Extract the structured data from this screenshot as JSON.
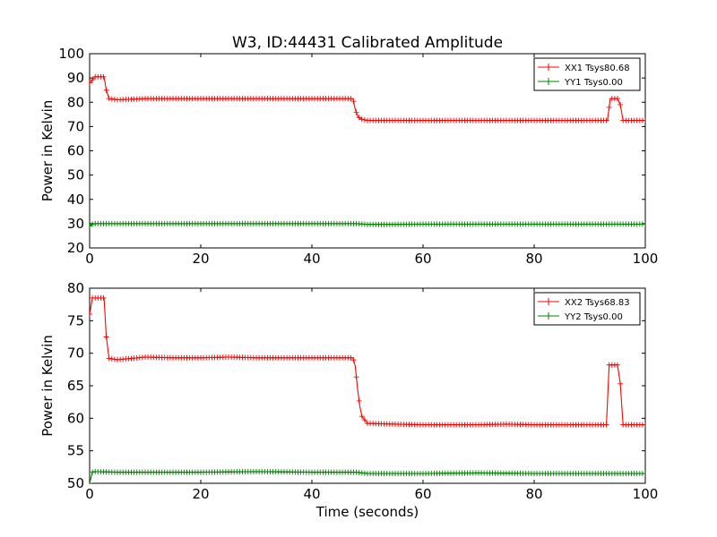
{
  "figure": {
    "title": "W3, ID:44431 Calibrated Amplitude",
    "xlabel": "Time (seconds)"
  },
  "chart_data": [
    {
      "type": "line",
      "title": "W3, ID:44431 Calibrated Amplitude",
      "xlabel": "",
      "ylabel": "Power in Kelvin",
      "xlim": [
        0,
        100
      ],
      "ylim": [
        20,
        100
      ],
      "xticks": [
        0,
        20,
        40,
        60,
        80,
        100
      ],
      "yticks": [
        20,
        30,
        40,
        50,
        60,
        70,
        80,
        90,
        100
      ],
      "legend": "top-right",
      "grid": false,
      "marker": "+",
      "series": [
        {
          "name": "XX1 Tsys80.68",
          "color": "#ff0000",
          "x": [
            0,
            1,
            2,
            2.6,
            3,
            3.5,
            5,
            10,
            15,
            20,
            25,
            30,
            35,
            40,
            45,
            47.4,
            47.8,
            48.3,
            49,
            50,
            55,
            60,
            65,
            70,
            75,
            80,
            85,
            90,
            93.2,
            93.7,
            95,
            95.5,
            96,
            98,
            100
          ],
          "y": [
            88,
            90.5,
            90.5,
            90.5,
            85,
            81.5,
            81,
            81.5,
            81.5,
            81.5,
            81.5,
            81.5,
            81.5,
            81.5,
            81.5,
            81.5,
            77,
            74,
            73,
            72.5,
            72.5,
            72.5,
            72.5,
            72.5,
            72.5,
            72.5,
            72.5,
            72.5,
            72.5,
            81.5,
            81.5,
            79,
            72.5,
            72.5,
            72.5
          ]
        },
        {
          "name": "YY1 Tsys0.00",
          "color": "#008000",
          "x": [
            0,
            0.5,
            1,
            5,
            10,
            20,
            30,
            40,
            48,
            50,
            55,
            60,
            70,
            80,
            90,
            100
          ],
          "y": [
            29,
            29.8,
            30,
            30,
            30,
            30,
            30,
            30,
            30,
            29.7,
            29.7,
            29.8,
            29.8,
            29.8,
            29.8,
            29.8
          ]
        }
      ]
    },
    {
      "type": "line",
      "title": "",
      "xlabel": "Time (seconds)",
      "ylabel": "Power in Kelvin",
      "xlim": [
        0,
        100
      ],
      "ylim": [
        50,
        80
      ],
      "xticks": [
        0,
        20,
        40,
        60,
        80,
        100
      ],
      "yticks": [
        50,
        55,
        60,
        65,
        70,
        75,
        80
      ],
      "legend": "top-right",
      "grid": false,
      "marker": "+",
      "series": [
        {
          "name": "XX2 Tsys68.83",
          "color": "#ff0000",
          "x": [
            0,
            0.5,
            1,
            2,
            2.6,
            3,
            3.5,
            5,
            10,
            15,
            20,
            25,
            30,
            35,
            40,
            45,
            47.4,
            47.8,
            48.2,
            48.6,
            49,
            50,
            55,
            60,
            65,
            70,
            75,
            80,
            85,
            90,
            93,
            93.5,
            95,
            95.5,
            96,
            98,
            100
          ],
          "y": [
            76,
            78.5,
            78.5,
            78.5,
            78.5,
            72.5,
            69.2,
            69,
            69.4,
            69.3,
            69.3,
            69.4,
            69.3,
            69.3,
            69.3,
            69.3,
            69.3,
            68,
            64.7,
            62,
            60.3,
            59.2,
            59.1,
            59,
            59,
            59,
            59.1,
            59,
            59,
            59,
            59,
            68.2,
            68.2,
            65.3,
            59,
            59,
            59
          ]
        },
        {
          "name": "YY2 Tsys0.00",
          "color": "#008000",
          "x": [
            0,
            0.5,
            1,
            5,
            10,
            20,
            30,
            40,
            48,
            50,
            55,
            60,
            70,
            80,
            90,
            100
          ],
          "y": [
            50,
            51.7,
            51.8,
            51.7,
            51.7,
            51.7,
            51.8,
            51.7,
            51.7,
            51.5,
            51.5,
            51.5,
            51.6,
            51.5,
            51.5,
            51.5
          ]
        }
      ]
    }
  ]
}
